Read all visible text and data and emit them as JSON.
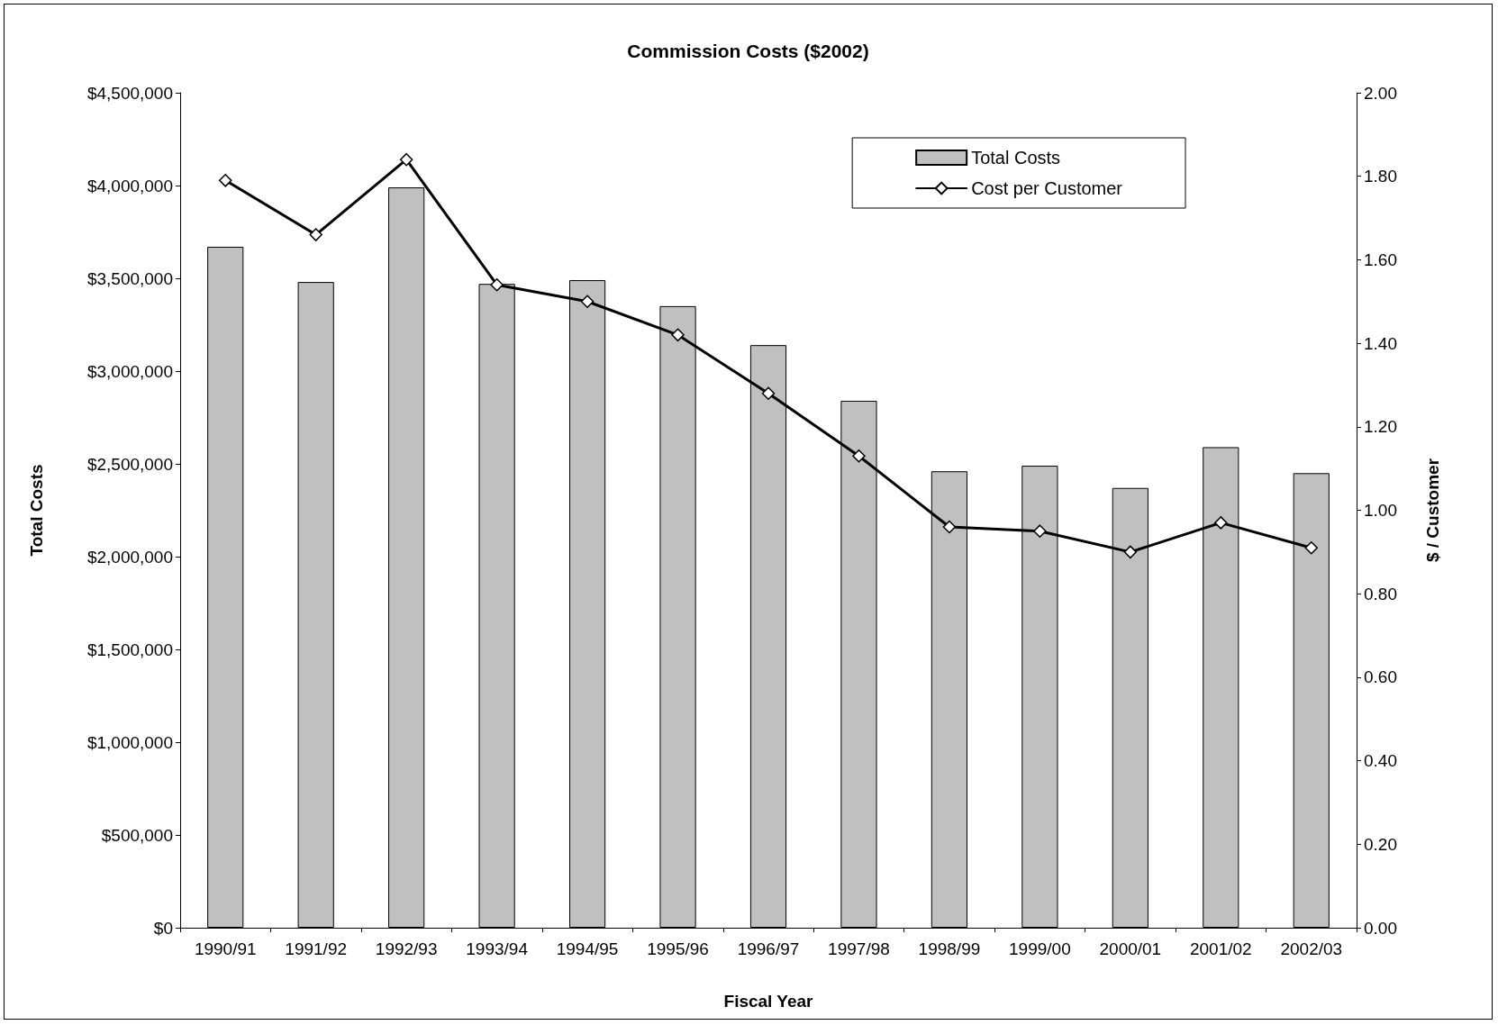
{
  "chart_data": {
    "type": "bar",
    "title": "Commission Costs ($2002)",
    "xlabel": "Fiscal Year",
    "ylabel": "Total Costs",
    "y2label": "$ / Customer",
    "categories": [
      "1990/91",
      "1991/92",
      "1992/93",
      "1993/94",
      "1994/95",
      "1995/96",
      "1996/97",
      "1997/98",
      "1998/99",
      "1999/00",
      "2000/01",
      "2001/02",
      "2002/03"
    ],
    "series": [
      {
        "name": "Total Costs",
        "color": "#c0c0c0",
        "values": [
          3670000,
          3480000,
          3990000,
          3470000,
          3490000,
          3350000,
          3140000,
          2840000,
          2460000,
          2490000,
          2370000,
          2590000,
          2450000
        ]
      },
      {
        "name": "Cost per Customer",
        "type": "line",
        "axis": "y2",
        "color": "#000000",
        "marker": "diamond",
        "line_style": "solid",
        "values": [
          1.79,
          1.66,
          1.84,
          1.54,
          1.5,
          1.42,
          1.28,
          1.13,
          0.96,
          0.95,
          0.9,
          0.97,
          0.91
        ]
      }
    ],
    "ylim": [
      0,
      4500000
    ],
    "yticks": [
      {
        "value": 0,
        "label": "$0"
      },
      {
        "value": 500000,
        "label": "$500,000"
      },
      {
        "value": 1000000,
        "label": "$1,000,000"
      },
      {
        "value": 1500000,
        "label": "$1,500,000"
      },
      {
        "value": 2000000,
        "label": "$2,000,000"
      },
      {
        "value": 2500000,
        "label": "$2,500,000"
      },
      {
        "value": 3000000,
        "label": "$3,000,000"
      },
      {
        "value": 3500000,
        "label": "$3,500,000"
      },
      {
        "value": 4000000,
        "label": "$4,000,000"
      },
      {
        "value": 4500000,
        "label": "$4,500,000"
      }
    ],
    "y2lim": [
      0,
      2
    ],
    "y2ticks": [
      {
        "value": 0,
        "label": "0.00"
      },
      {
        "value": 0.2,
        "label": "0.20"
      },
      {
        "value": 0.4,
        "label": "0.40"
      },
      {
        "value": 0.6,
        "label": "0.60"
      },
      {
        "value": 0.8,
        "label": "0.80"
      },
      {
        "value": 1,
        "label": "1.00"
      },
      {
        "value": 1.2,
        "label": "1.20"
      },
      {
        "value": 1.4,
        "label": "1.40"
      },
      {
        "value": 1.6,
        "label": "1.60"
      },
      {
        "value": 1.8,
        "label": "1.80"
      },
      {
        "value": 2,
        "label": "2.00"
      }
    ],
    "grid": false,
    "legend": "top right"
  }
}
